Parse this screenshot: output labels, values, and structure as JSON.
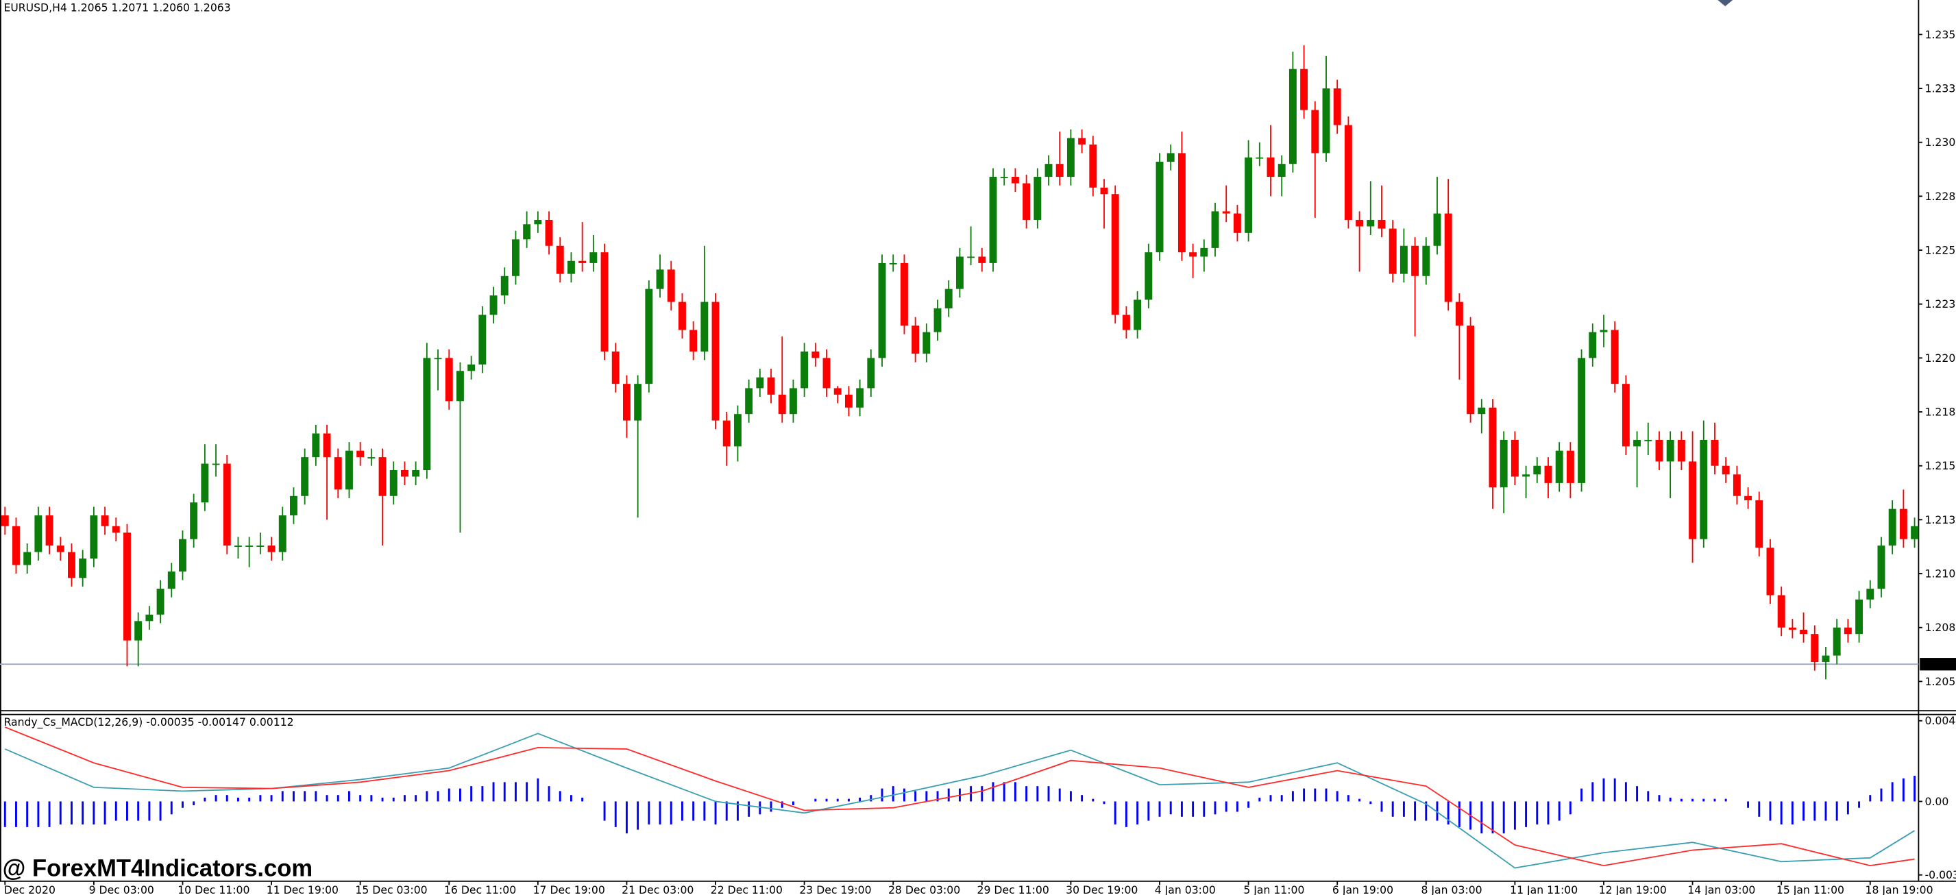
{
  "chart_data": [
    {
      "type": "candlestick",
      "title": "EURUSD,H4  1.2065 1.2071 1.2060 1.2063",
      "up_color": "#0b7d0b",
      "down_color": "#ff0000",
      "open": [
        1.2132,
        1.2127,
        1.2109,
        1.2115,
        1.2132,
        1.2118,
        1.2115,
        1.2103,
        1.2112,
        1.2132,
        1.2127,
        1.2124,
        1.2074,
        1.2083,
        1.2086,
        1.2098,
        1.2106,
        1.2121,
        1.2138,
        1.2156,
        1.2156,
        1.2118,
        1.2118,
        1.2118,
        1.2118,
        1.2115,
        1.2132,
        1.2141,
        1.2159,
        1.217,
        1.2159,
        1.2144,
        1.2162,
        1.2159,
        1.2159,
        1.2141,
        1.2153,
        1.215,
        1.2153,
        1.2205,
        1.2205,
        1.2185,
        1.2199,
        1.2202,
        1.2225,
        1.2234,
        1.2243,
        1.226,
        1.2267,
        1.2269,
        1.2257,
        1.2244,
        1.225,
        1.2249,
        1.2254,
        1.2208,
        1.2193,
        1.2176,
        1.2193,
        1.2237,
        1.2246,
        1.2231,
        1.2218,
        1.2208,
        1.2231,
        1.2176,
        1.2164,
        1.2179,
        1.2191,
        1.2196,
        1.2188,
        1.2179,
        1.2191,
        1.2208,
        1.2205,
        1.2191,
        1.2188,
        1.2182,
        1.2191,
        1.2205,
        1.2249,
        1.2249,
        1.222,
        1.2207,
        1.2217,
        1.2228,
        1.2237,
        1.2252,
        1.2252,
        1.2249,
        1.2289,
        1.2289,
        1.2286,
        1.2269,
        1.2289,
        1.2295,
        1.2289,
        1.2307,
        1.2304,
        1.2284,
        1.2281,
        1.2225,
        1.2218,
        1.2232,
        1.2254,
        1.2296,
        1.23,
        1.2254,
        1.2252,
        1.2256,
        1.2273,
        1.2272,
        1.2263,
        1.2298,
        1.2298,
        1.2289,
        1.2295,
        1.2339,
        1.232,
        1.23,
        1.233,
        1.2313,
        1.2269,
        1.2266,
        1.2269,
        1.2265,
        1.2244,
        1.2257,
        1.2243,
        1.2257,
        1.2272,
        1.2231,
        1.222,
        1.2179,
        1.2182,
        1.2145,
        1.2167,
        1.215,
        1.2151,
        1.2155,
        1.2147,
        1.2162,
        1.2147,
        1.2205,
        1.2217,
        1.2218,
        1.2193,
        1.2164,
        1.2167,
        1.2167,
        1.2157,
        1.2167,
        1.2157,
        1.2121,
        1.2167,
        1.2155,
        1.2151,
        1.2141,
        1.2139,
        1.2117,
        1.2095,
        1.208,
        1.2079,
        1.2077,
        1.2064,
        1.2067,
        1.208,
        1.2077,
        1.2093,
        1.2098,
        1.2118,
        1.2135,
        1.2121
      ],
      "high": [
        1.2136,
        1.2131,
        1.2119,
        1.2136,
        1.2136,
        1.2122,
        1.2119,
        1.2116,
        1.2136,
        1.2136,
        1.2131,
        1.2128,
        1.2087,
        1.209,
        1.2102,
        1.211,
        1.2125,
        1.2142,
        1.2165,
        1.2165,
        1.216,
        1.2122,
        1.2122,
        1.2124,
        1.2122,
        1.2136,
        1.2145,
        1.2163,
        1.2174,
        1.2174,
        1.2163,
        1.2166,
        1.2166,
        1.2163,
        1.2163,
        1.2157,
        1.2157,
        1.2157,
        1.2212,
        1.2209,
        1.2209,
        1.2203,
        1.2206,
        1.2229,
        1.2238,
        1.2247,
        1.2264,
        1.2273,
        1.2273,
        1.2273,
        1.2261,
        1.2254,
        1.2268,
        1.2262,
        1.2258,
        1.2212,
        1.2197,
        1.2197,
        1.2241,
        1.2253,
        1.225,
        1.2235,
        1.2222,
        1.2257,
        1.2235,
        1.218,
        1.2183,
        1.2195,
        1.22,
        1.22,
        1.2215,
        1.2195,
        1.2212,
        1.2212,
        1.2209,
        1.2192,
        1.2192,
        1.2195,
        1.2209,
        1.2253,
        1.2253,
        1.2253,
        1.2224,
        1.2221,
        1.2232,
        1.2241,
        1.2256,
        1.2266,
        1.2256,
        1.2293,
        1.2293,
        1.2293,
        1.229,
        1.2293,
        1.2299,
        1.231,
        1.2311,
        1.2311,
        1.2308,
        1.2288,
        1.2285,
        1.2229,
        1.2236,
        1.2258,
        1.23,
        1.2304,
        1.231,
        1.2258,
        1.226,
        1.2277,
        1.2285,
        1.2276,
        1.2306,
        1.2305,
        1.2313,
        1.2299,
        1.2347,
        1.235,
        1.2324,
        1.2345,
        1.2334,
        1.2317,
        1.2273,
        1.2287,
        1.2285,
        1.2269,
        1.2265,
        1.2261,
        1.2261,
        1.2289,
        1.2288,
        1.2235,
        1.2224,
        1.2186,
        1.2186,
        1.2171,
        1.2171,
        1.2155,
        1.2159,
        1.2159,
        1.2166,
        1.2166,
        1.2209,
        1.2221,
        1.2225,
        1.2222,
        1.2197,
        1.2171,
        1.2175,
        1.2171,
        1.2171,
        1.2171,
        1.2171,
        1.2176,
        1.2175,
        1.2159,
        1.2155,
        1.2145,
        1.2143,
        1.2121,
        1.2099,
        1.2084,
        1.2087,
        1.2081,
        1.2071,
        1.2084,
        1.2084,
        1.2097,
        1.2102,
        1.2122,
        1.2139,
        1.2144,
        1.2131
      ],
      "low": [
        1.2123,
        1.2105,
        1.2105,
        1.2111,
        1.2114,
        1.2111,
        1.2099,
        1.2099,
        1.2108,
        1.2123,
        1.212,
        1.2062,
        1.2062,
        1.2079,
        1.2082,
        1.2094,
        1.2102,
        1.2117,
        1.2134,
        1.215,
        1.2114,
        1.2112,
        1.2108,
        1.2114,
        1.2111,
        1.2111,
        1.2128,
        1.2137,
        1.2155,
        1.213,
        1.214,
        1.214,
        1.2155,
        1.2155,
        1.2118,
        1.2137,
        1.2146,
        1.2146,
        1.2149,
        1.219,
        1.2181,
        1.2124,
        1.2195,
        1.2198,
        1.2221,
        1.223,
        1.2239,
        1.2256,
        1.2263,
        1.2253,
        1.224,
        1.224,
        1.2245,
        1.2245,
        1.2204,
        1.2189,
        1.2168,
        1.2131,
        1.2189,
        1.2233,
        1.2227,
        1.2214,
        1.2204,
        1.2204,
        1.2172,
        1.2155,
        1.2157,
        1.2175,
        1.2187,
        1.2184,
        1.2175,
        1.2175,
        1.2187,
        1.2201,
        1.2187,
        1.2184,
        1.2178,
        1.2178,
        1.2187,
        1.2201,
        1.2245,
        1.2216,
        1.2203,
        1.2203,
        1.2213,
        1.2224,
        1.2233,
        1.2248,
        1.2245,
        1.2245,
        1.2285,
        1.2282,
        1.2265,
        1.2265,
        1.2285,
        1.2285,
        1.2285,
        1.23,
        1.228,
        1.2265,
        1.2221,
        1.2214,
        1.2214,
        1.2228,
        1.225,
        1.2292,
        1.225,
        1.2242,
        1.2245,
        1.2252,
        1.2268,
        1.2259,
        1.2259,
        1.2294,
        1.228,
        1.228,
        1.2291,
        1.2316,
        1.227,
        1.2296,
        1.2309,
        1.2265,
        1.2245,
        1.2262,
        1.2261,
        1.224,
        1.224,
        1.2215,
        1.2239,
        1.2253,
        1.2227,
        1.2195,
        1.2175,
        1.217,
        1.2135,
        1.2133,
        1.2146,
        1.214,
        1.2147,
        1.214,
        1.2143,
        1.214,
        1.2143,
        1.2201,
        1.221,
        1.2189,
        1.216,
        1.2145,
        1.216,
        1.2153,
        1.214,
        1.2153,
        1.211,
        1.2117,
        1.2151,
        1.2147,
        1.2137,
        1.2135,
        1.2113,
        1.2091,
        1.2076,
        1.2075,
        1.2073,
        1.206,
        1.2056,
        1.2063,
        1.2073,
        1.2073,
        1.2089,
        1.2094,
        1.2114,
        1.2117,
        1.2117
      ],
      "close": [
        1.2127,
        1.2109,
        1.2115,
        1.2132,
        1.2118,
        1.2115,
        1.2103,
        1.2112,
        1.2132,
        1.2127,
        1.2124,
        1.2074,
        1.2083,
        1.2086,
        1.2098,
        1.2106,
        1.2121,
        1.2138,
        1.2156,
        1.2156,
        1.2118,
        1.2118,
        1.2118,
        1.2118,
        1.2115,
        1.2132,
        1.2141,
        1.2159,
        1.217,
        1.2159,
        1.2144,
        1.2162,
        1.2159,
        1.2159,
        1.2141,
        1.2153,
        1.215,
        1.2153,
        1.2205,
        1.2205,
        1.2185,
        1.2199,
        1.2202,
        1.2225,
        1.2234,
        1.2243,
        1.226,
        1.2267,
        1.2269,
        1.2257,
        1.2244,
        1.225,
        1.2249,
        1.2254,
        1.2208,
        1.2193,
        1.2176,
        1.2193,
        1.2237,
        1.2246,
        1.2231,
        1.2218,
        1.2208,
        1.2231,
        1.2176,
        1.2164,
        1.2179,
        1.2191,
        1.2196,
        1.2188,
        1.2179,
        1.2191,
        1.2208,
        1.2205,
        1.2191,
        1.2188,
        1.2182,
        1.2191,
        1.2205,
        1.2249,
        1.2249,
        1.222,
        1.2207,
        1.2217,
        1.2228,
        1.2237,
        1.2252,
        1.2252,
        1.2249,
        1.2289,
        1.2289,
        1.2286,
        1.2269,
        1.2289,
        1.2295,
        1.2289,
        1.2307,
        1.2304,
        1.2284,
        1.2281,
        1.2225,
        1.2218,
        1.2232,
        1.2254,
        1.2296,
        1.23,
        1.2254,
        1.2252,
        1.2256,
        1.2273,
        1.2272,
        1.2263,
        1.2298,
        1.2298,
        1.2289,
        1.2295,
        1.2339,
        1.232,
        1.23,
        1.233,
        1.2313,
        1.2269,
        1.2266,
        1.2269,
        1.2265,
        1.2244,
        1.2257,
        1.2243,
        1.2257,
        1.2272,
        1.2231,
        1.222,
        1.2179,
        1.2182,
        1.2145,
        1.2167,
        1.215,
        1.2151,
        1.2155,
        1.2147,
        1.2162,
        1.2147,
        1.2205,
        1.2217,
        1.2218,
        1.2193,
        1.2164,
        1.2167,
        1.2167,
        1.2157,
        1.2167,
        1.2157,
        1.2121,
        1.2167,
        1.2155,
        1.2151,
        1.2141,
        1.2139,
        1.2117,
        1.2095,
        1.208,
        1.2079,
        1.2077,
        1.2064,
        1.2067,
        1.208,
        1.2077,
        1.2093,
        1.2098,
        1.2118,
        1.2135,
        1.2121,
        1.2127
      ],
      "ylim": [
        1.2042,
        1.2371
      ],
      "yticks": [
        1.2355,
        {
          "value": 1.233,
          "label": "1.2330"
        },
        1.2305,
        {
          "value": 1.228,
          "label": "1.2280"
        },
        1.2255,
        {
          "value": 1.223,
          "label": "1.2230"
        },
        1.2205,
        {
          "value": 1.218,
          "label": "1.2180"
        },
        1.2155,
        {
          "value": 1.213,
          "label": "1.2130"
        },
        1.2105,
        {
          "value": 1.208,
          "label": "1.2080"
        },
        1.2055
      ],
      "xticks": [
        {
          "value": 0,
          "label": "7 Dec 2020"
        },
        {
          "value": 8,
          "label": "9 Dec 03:00"
        },
        {
          "value": 16,
          "label": "10 Dec 11:00"
        },
        {
          "value": 24,
          "label": "11 Dec 19:00"
        },
        {
          "value": 32,
          "label": "15 Dec 03:00"
        },
        {
          "value": 40,
          "label": "16 Dec 11:00"
        },
        {
          "value": 48,
          "label": "17 Dec 19:00"
        },
        {
          "value": 56,
          "label": "21 Dec 03:00"
        },
        {
          "value": 64,
          "label": "22 Dec 11:00"
        },
        {
          "value": 72,
          "label": "23 Dec 19:00"
        },
        {
          "value": 80,
          "label": "28 Dec 03:00"
        },
        {
          "value": 88,
          "label": "29 Dec 11:00"
        },
        {
          "value": 96,
          "label": "30 Dec 19:00"
        },
        {
          "value": 104,
          "label": "4 Jan 03:00"
        },
        {
          "value": 112,
          "label": "5 Jan 11:00"
        },
        {
          "value": 120,
          "label": "6 Jan 19:00"
        },
        {
          "value": 128,
          "label": "8 Jan 03:00"
        },
        {
          "value": 136,
          "label": "11 Jan 11:00"
        },
        {
          "value": 144,
          "label": "12 Jan 19:00"
        },
        {
          "value": 152,
          "label": "14 Jan 03:00"
        },
        {
          "value": 160,
          "label": "15 Jan 11:00"
        },
        {
          "value": 168,
          "label": "18 Jan 19:00"
        }
      ],
      "bid": 1.2063,
      "bid_color": "#9aabc6"
    },
    {
      "type": "macd",
      "title": "Randy_Cs_MACD(12,26,9) -0.00035 -0.00147 0.00112",
      "histogram": {
        "color": "#0000ff",
        "values": [
          -0.00129,
          -0.00129,
          -0.00129,
          -0.00129,
          -0.00129,
          -0.00116,
          -0.00116,
          -0.00116,
          -0.00116,
          -0.00116,
          -0.00097,
          -0.00097,
          -0.00097,
          -0.00097,
          -0.00097,
          -0.00065,
          -0.00032,
          -0.00019,
          0.00019,
          0.00032,
          0.00032,
          0.00019,
          0.00019,
          0.00032,
          0.00032,
          0.00052,
          0.00052,
          0.00052,
          0.00052,
          0.00032,
          0.00032,
          0.00052,
          0.00032,
          0.00032,
          0.00019,
          0.00019,
          0.00032,
          0.00032,
          0.00052,
          0.00052,
          0.00065,
          0.00065,
          0.00077,
          0.00077,
          0.00097,
          0.00097,
          0.00097,
          0.00097,
          0.00116,
          0.00077,
          0.00052,
          0.00032,
          0.00019,
          0,
          -0.00097,
          -0.00129,
          -0.00161,
          -0.00142,
          -0.00116,
          -0.00116,
          -0.00116,
          -0.00097,
          -0.00097,
          -0.00097,
          -0.00116,
          -0.00097,
          -0.00097,
          -0.00077,
          -0.00065,
          -0.00052,
          -0.00032,
          -0.00019,
          0,
          0.00013,
          0.00013,
          0.00013,
          0.00013,
          0.00019,
          0.00032,
          0.00065,
          0.00077,
          0.00065,
          0.00052,
          0.00052,
          0.00052,
          0.00065,
          0.00065,
          0.00077,
          0.00077,
          0.00097,
          0.00097,
          0.00097,
          0.00077,
          0.00077,
          0.00077,
          0.00065,
          0.00052,
          0.00032,
          0.00013,
          -0.00013,
          -0.00116,
          -0.00129,
          -0.00116,
          -0.00097,
          -0.00077,
          -0.00065,
          -0.00077,
          -0.00077,
          -0.00077,
          -0.00065,
          -0.00052,
          -0.00052,
          -0.00032,
          0.00019,
          0.00032,
          0.00032,
          0.00052,
          0.00065,
          0.00065,
          0.00065,
          0.00052,
          0.00032,
          0.00013,
          -0.00013,
          -0.00052,
          -0.00077,
          -0.00077,
          -0.00097,
          -0.00097,
          -0.00097,
          -0.00116,
          -0.00129,
          -0.00142,
          -0.00161,
          -0.00161,
          -0.00161,
          -0.00142,
          -0.00129,
          -0.00116,
          -0.00116,
          -0.00097,
          -0.00065,
          0.00065,
          0.00097,
          0.00116,
          0.00116,
          0.00097,
          0.00077,
          0.00052,
          0.00032,
          0.00019,
          0.00013,
          0.00013,
          0.00013,
          0.00013,
          0.00013,
          0,
          -0.00032,
          -0.00077,
          -0.00097,
          -0.00116,
          -0.00116,
          -0.00097,
          -0.00097,
          -0.00097,
          -0.00097,
          -0.00065,
          -0.00032,
          0.00032,
          0.00065,
          0.00097,
          0.00116,
          0.00129
        ]
      },
      "x": [
        0,
        8,
        16,
        24,
        32,
        40,
        48,
        56,
        64,
        72,
        80,
        88,
        96,
        104,
        112,
        120,
        128,
        136,
        144,
        152,
        160,
        168,
        172
      ],
      "series": [
        {
          "color": "#3a9fb3",
          "values": [
            0.00264,
            0.00071,
            0.00052,
            0.00065,
            0.0011,
            0.00168,
            0.00342,
            0.00168,
            0,
            -0.00058,
            0.00032,
            0.00129,
            0.00258,
            0.00084,
            0.00097,
            0.00194,
            -0.00013,
            -0.00335,
            -0.00258,
            -0.00206,
            -0.00303,
            -0.00284,
            -0.00147
          ]
        },
        {
          "color": "#ff2a2a",
          "values": [
            0.00374,
            0.00194,
            0.00071,
            0.00065,
            0.00097,
            0.00155,
            0.00271,
            0.00264,
            0.00103,
            -0.00045,
            -0.00032,
            0.00052,
            0.00206,
            0.00168,
            0.00071,
            0.00155,
            0.00077,
            -0.00219,
            -0.00323,
            -0.00245,
            -0.00213,
            -0.00323,
            -0.0029
          ]
        }
      ],
      "ylim": [
        -0.0037,
        0.00406
      ],
      "yticks": [
        0.00406,
        {
          "value": 0,
          "label": "0.00"
        },
        -0.0037
      ]
    }
  ],
  "watermark": "@ ForexMT4Indicators.com"
}
